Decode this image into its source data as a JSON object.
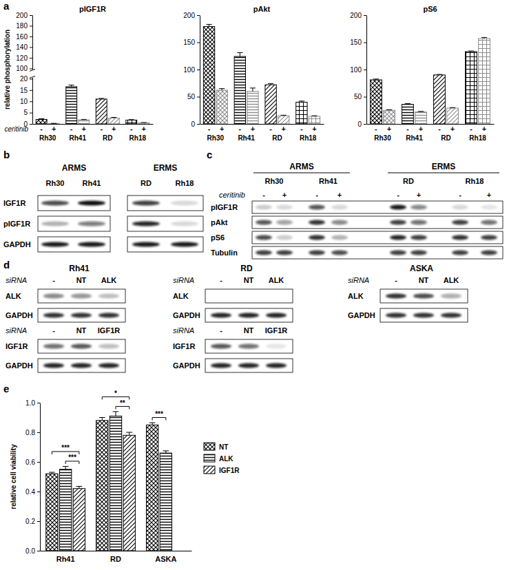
{
  "figure": {
    "panel_labels": [
      "a",
      "b",
      "c",
      "d",
      "e"
    ]
  },
  "chart_data": [
    {
      "type": "bar",
      "title": "pIGF1R",
      "ylabel": "relative phosphorylation",
      "xlabel": "ceritinib",
      "categories": [
        "Rh30",
        "Rh41",
        "RD",
        "Rh18"
      ],
      "series": [
        {
          "name": "-",
          "color": "#000000",
          "values": [
            2.0,
            16.5,
            11.0,
            1.7
          ],
          "errors": [
            0.3,
            0.7,
            0.3,
            0.2
          ]
        },
        {
          "name": "+",
          "color": "#8c8c8c",
          "values": [
            0.2,
            1.8,
            2.6,
            0.5
          ],
          "errors": [
            0.05,
            0.2,
            0.3,
            0.1
          ]
        }
      ],
      "ylim": [
        0,
        200
      ],
      "y_break": [
        20,
        100
      ],
      "yticks": [
        0,
        5,
        10,
        15,
        20,
        100,
        120,
        140,
        160,
        180,
        200
      ]
    },
    {
      "type": "bar",
      "title": "pAkt",
      "categories": [
        "Rh30",
        "Rh41",
        "RD",
        "Rh18"
      ],
      "series": [
        {
          "name": "-",
          "color": "#000000",
          "values": [
            179,
            124,
            72,
            40
          ],
          "errors": [
            4,
            7,
            2,
            2
          ]
        },
        {
          "name": "+",
          "color": "#8c8c8c",
          "values": [
            62,
            60,
            15,
            14
          ],
          "errors": [
            3,
            6,
            1,
            1
          ]
        }
      ],
      "ylim": [
        0,
        200
      ],
      "yticks": [
        0,
        50,
        100,
        150,
        200
      ]
    },
    {
      "type": "bar",
      "title": "pS6",
      "categories": [
        "Rh30",
        "Rh41",
        "RD",
        "Rh18"
      ],
      "series": [
        {
          "name": "-",
          "color": "#000000",
          "values": [
            81,
            36,
            90,
            133
          ],
          "errors": [
            1.5,
            1.5,
            1,
            1
          ]
        },
        {
          "name": "+",
          "color": "#8c8c8c",
          "values": [
            25,
            22,
            29,
            157
          ],
          "errors": [
            1,
            1,
            1,
            2
          ]
        }
      ],
      "ylim": [
        0,
        200
      ],
      "yticks": [
        0,
        50,
        100,
        150,
        200
      ]
    },
    {
      "type": "bar",
      "ylabel": "relative cell viability",
      "categories": [
        "Rh41",
        "RD",
        "ASKA"
      ],
      "series": [
        {
          "name": "NT",
          "color": "#000000",
          "values": [
            0.52,
            0.88,
            0.85
          ],
          "errors": [
            0.01,
            0.02,
            0.015
          ]
        },
        {
          "name": "ALK",
          "color": "#000000",
          "values": [
            0.55,
            0.91,
            0.66
          ],
          "errors": [
            0.02,
            0.03,
            0.015
          ]
        },
        {
          "name": "IGF1R",
          "color": "#000000",
          "values": [
            0.42,
            0.78,
            null
          ],
          "errors": [
            0.015,
            0.02,
            null
          ]
        }
      ],
      "ylim": [
        0,
        1
      ],
      "yticks": [
        {
          "value": 0,
          "label": "0.0"
        },
        {
          "value": 0.2,
          "label": "0.2"
        },
        {
          "value": 0.4,
          "label": "0.4"
        },
        {
          "value": 0.6,
          "label": "0.6"
        },
        {
          "value": 0.8,
          "label": "0.8"
        },
        {
          "value": 1,
          "label": "1.0"
        }
      ],
      "legend": "right",
      "annotations": [
        {
          "text": "***",
          "category": "Rh41",
          "between": [
            "NT",
            "IGF1R"
          ]
        },
        {
          "text": "***",
          "category": "Rh41",
          "between": [
            "ALK",
            "IGF1R"
          ]
        },
        {
          "text": "*",
          "category": "RD",
          "between": [
            "NT",
            "IGF1R"
          ]
        },
        {
          "text": "**",
          "category": "RD",
          "between": [
            "ALK",
            "IGF1R"
          ]
        },
        {
          "text": "***",
          "category": "ASKA",
          "between": [
            "NT",
            "ALK"
          ]
        }
      ]
    }
  ],
  "blots": {
    "b": {
      "groups": [
        {
          "name": "ARMS",
          "lanes": [
            "Rh30",
            "Rh41"
          ]
        },
        {
          "name": "ERMS",
          "lanes": [
            "RD",
            "Rh18"
          ]
        }
      ],
      "rows": [
        {
          "name": "IGF1R",
          "intensities": [
            0.75,
            1.0,
            0.8,
            0.15
          ]
        },
        {
          "name": "pIGF1R",
          "intensities": [
            0.3,
            0.55,
            0.9,
            0.15
          ]
        },
        {
          "name": "GAPDH",
          "intensities": [
            0.95,
            0.95,
            0.95,
            0.95
          ]
        }
      ]
    },
    "c": {
      "groups": [
        {
          "name": "ARMS",
          "lanes": [
            "Rh30",
            "Rh41"
          ]
        },
        {
          "name": "ERMS",
          "lanes": [
            "RD",
            "Rh18"
          ]
        }
      ],
      "treatment": {
        "name": "ceritinib",
        "lanes": [
          "-",
          "+",
          "-",
          "+",
          "-",
          "+",
          "-",
          "+"
        ]
      },
      "rows": [
        {
          "name": "pIGF1R",
          "intensities": [
            0.2,
            0.15,
            0.7,
            0.15,
            0.95,
            0.5,
            0.15,
            0.1
          ]
        },
        {
          "name": "pAkt",
          "intensities": [
            0.7,
            0.4,
            0.85,
            0.5,
            0.8,
            0.6,
            0.8,
            0.6
          ]
        },
        {
          "name": "pS6",
          "intensities": [
            0.75,
            0.2,
            0.85,
            0.3,
            0.9,
            0.8,
            0.85,
            0.8
          ]
        },
        {
          "name": "Tubulin",
          "intensities": [
            0.8,
            0.8,
            0.8,
            0.75,
            0.8,
            0.8,
            0.8,
            0.8
          ]
        }
      ]
    },
    "d": [
      {
        "title": "Rh41",
        "blots": [
          {
            "label": "siRNA",
            "lanes": [
              "-",
              "NT",
              "ALK"
            ],
            "rows": [
              {
                "name": "ALK",
                "intensities": [
                  0.5,
                  0.45,
                  0.25
                ]
              },
              {
                "name": "GAPDH",
                "intensities": [
                  0.85,
                  0.85,
                  0.85
                ]
              }
            ]
          },
          {
            "label": "siRNA",
            "lanes": [
              "-",
              "NT",
              "IGF1R"
            ],
            "rows": [
              {
                "name": "IGF1R",
                "intensities": [
                  0.6,
                  0.7,
                  0.25
                ]
              },
              {
                "name": "GAPDH",
                "intensities": [
                  0.9,
                  0.9,
                  0.9
                ]
              }
            ]
          }
        ]
      },
      {
        "title": "RD",
        "blots": [
          {
            "label": "siRNA",
            "lanes": [
              "-",
              "NT",
              "ALK"
            ],
            "rows": [
              {
                "name": "ALK",
                "intensities": [
                  0,
                  0,
                  0
                ]
              },
              {
                "name": "GAPDH",
                "intensities": [
                  0.9,
                  0.9,
                  0.9
                ]
              }
            ]
          },
          {
            "label": "siRNA",
            "lanes": [
              "-",
              "NT",
              "IGF1R"
            ],
            "rows": [
              {
                "name": "IGF1R",
                "intensities": [
                  0.7,
                  0.6,
                  0.1
                ]
              },
              {
                "name": "GAPDH",
                "intensities": [
                  0.9,
                  0.9,
                  0.9
                ]
              }
            ]
          }
        ]
      },
      {
        "title": "ASKA",
        "blots": [
          {
            "label": "siRNA",
            "lanes": [
              "-",
              "NT",
              "ALK"
            ],
            "rows": [
              {
                "name": "ALK",
                "intensities": [
                  0.85,
                  0.75,
                  0.35
                ]
              },
              {
                "name": "GAPDH",
                "intensities": [
                  0.85,
                  0.85,
                  0.85
                ]
              }
            ]
          }
        ]
      }
    ]
  }
}
